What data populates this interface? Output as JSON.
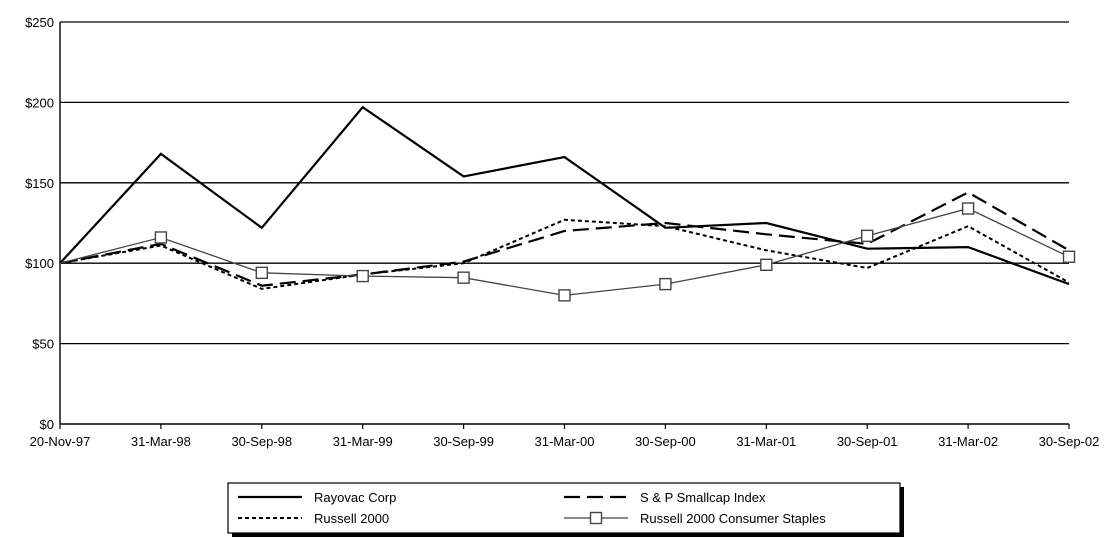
{
  "chart_data": {
    "type": "line",
    "title": "",
    "xlabel": "",
    "ylabel": "",
    "categories": [
      "20-Nov-97",
      "31-Mar-98",
      "30-Sep-98",
      "31-Mar-99",
      "30-Sep-99",
      "31-Mar-00",
      "30-Sep-00",
      "31-Mar-01",
      "30-Sep-01",
      "31-Mar-02",
      "30-Sep-02"
    ],
    "ylim": [
      0,
      250
    ],
    "yticks": [
      0,
      50,
      100,
      150,
      200,
      250
    ],
    "ytick_labels": [
      "$0",
      "$50",
      "$100",
      "$150",
      "$200",
      "$250"
    ],
    "grid": true,
    "legend_position": "bottom",
    "series": [
      {
        "name": "Rayovac Corp",
        "style": "solid",
        "color": "#000000",
        "values": [
          100,
          168,
          122,
          197,
          154,
          166,
          122,
          125,
          109,
          110,
          87
        ]
      },
      {
        "name": "S & P Smallcap Index",
        "style": "long-dash",
        "color": "#000000",
        "values": [
          100,
          112,
          86,
          93,
          101,
          120,
          125,
          118,
          112,
          144,
          108
        ]
      },
      {
        "name": "Russell 2000",
        "style": "dotted",
        "color": "#000000",
        "values": [
          100,
          111,
          84,
          93,
          100,
          127,
          123,
          108,
          97,
          123,
          88
        ]
      },
      {
        "name": "Russell 2000 Consumer Staples",
        "style": "square-markers",
        "color": "#444444",
        "values": [
          100,
          116,
          94,
          92,
          91,
          80,
          87,
          99,
          117,
          134,
          104
        ]
      }
    ]
  }
}
